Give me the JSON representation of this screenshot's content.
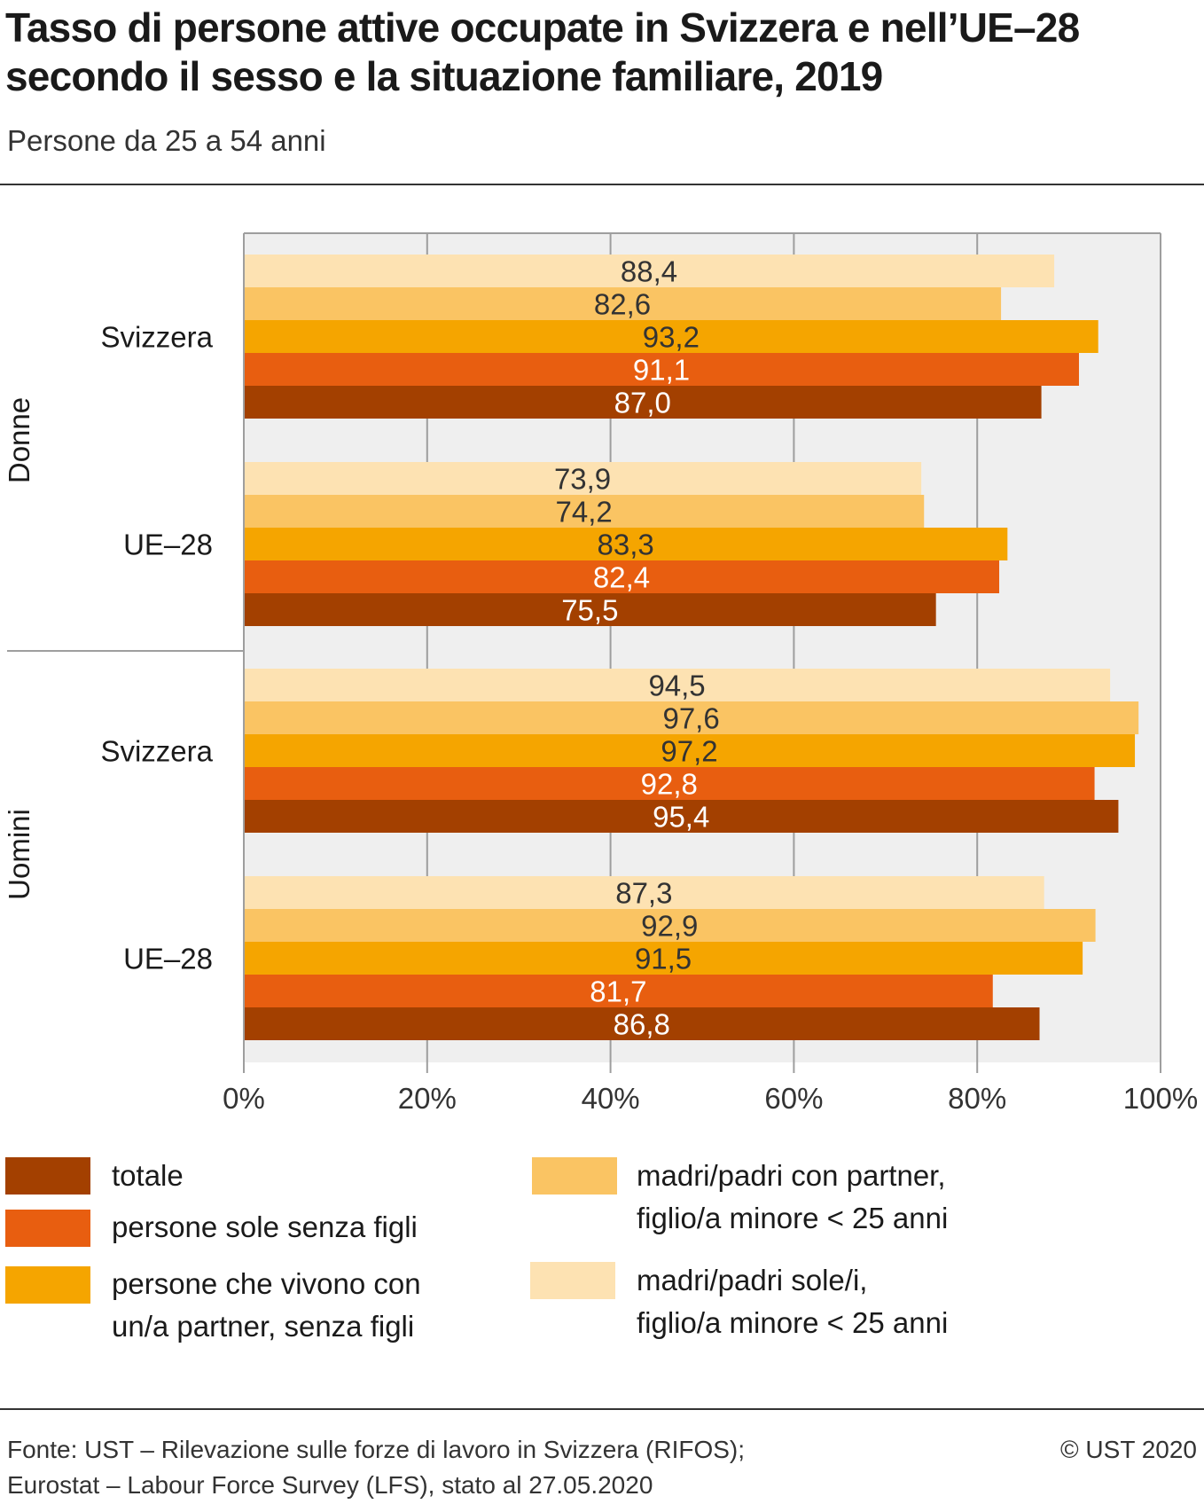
{
  "header": {
    "title": "Tasso di persone attive occupate in Svizzera e nell’UE–28 secondo il sesso e la situazione familiare, 2019",
    "subtitle": "Persone da 25 a 54 anni"
  },
  "chart_data": {
    "type": "bar",
    "orientation": "horizontal",
    "xlim": [
      0,
      100
    ],
    "x_ticks": [
      "0%",
      "20%",
      "40%",
      "60%",
      "80%",
      "100%"
    ],
    "grid": true,
    "groups": [
      {
        "name": "Donne",
        "categories": [
          "Svizzera",
          "UE–28"
        ]
      },
      {
        "name": "Uomini",
        "categories": [
          "Svizzera",
          "UE–28"
        ]
      }
    ],
    "series": [
      {
        "name": "madri/padri sole/i, figlio/a minore < 25 anni",
        "color": "#FDE2B2",
        "label_color": "#333333",
        "values": [
          "88,4",
          "73,9",
          "94,5",
          "87,3"
        ]
      },
      {
        "name": "madri/padri con partner, figlio/a minore < 25 anni",
        "color": "#FAC463",
        "label_color": "#333333",
        "values": [
          "82,6",
          "74,2",
          "97,6",
          "92,9"
        ]
      },
      {
        "name": "persone che vivono con un/a partner, senza figli",
        "color": "#F5A500",
        "label_color": "#333333",
        "values": [
          "93,2",
          "83,3",
          "97,2",
          "91,5"
        ]
      },
      {
        "name": "persone sole senza figli",
        "color": "#E85E10",
        "label_color": "#ffffff",
        "values": [
          "91,1",
          "82,4",
          "92,8",
          "81,7"
        ]
      },
      {
        "name": "totale",
        "color": "#A34000",
        "label_color": "#ffffff",
        "values": [
          "87,0",
          "75,5",
          "95,4",
          "86,8"
        ]
      }
    ],
    "legend_placement": "bottom"
  },
  "legend": {
    "items": [
      {
        "label": "totale",
        "color": "#A34000"
      },
      {
        "label": "persone sole senza figli",
        "color": "#E85E10"
      },
      {
        "label": "persone che vivono con\nun/a partner, senza figli",
        "color": "#F5A500"
      },
      {
        "label": "madri/padri con partner,\nfiglio/a minore < 25 anni",
        "color": "#FAC463"
      },
      {
        "label": "madri/padri sole/i,\nfiglio/a minore < 25 anni",
        "color": "#FDE2B2"
      }
    ]
  },
  "footer": {
    "source": "Fonte: UST – Rilevazione sulle forze di lavoro in Svizzera (RIFOS);\n          Eurostat – Labour Force Survey (LFS), stato al 27.05.2020",
    "copyright": "© UST 2020"
  }
}
